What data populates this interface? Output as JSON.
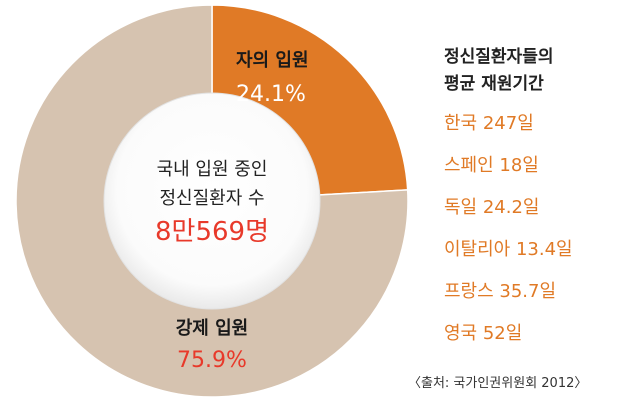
{
  "chart_data": {
    "type": "pie",
    "donut": true,
    "slices": [
      {
        "label": "자의 입원",
        "value": 24.1,
        "value_text": "24.1%",
        "color": "#e07a26"
      },
      {
        "label": "강제 입원",
        "value": 75.9,
        "value_text": "75.9%",
        "color": "#d6c3b0"
      }
    ],
    "center": {
      "line1": "국내 입원 중인",
      "line2": "정신질환자 수",
      "value": "8만569명"
    },
    "side_panel": {
      "title_line1": "정신질환자들의",
      "title_line2": "평균 재원기간",
      "items": [
        "한국 247일",
        "스페인 18일",
        "독일 24.2일",
        "이탈리아 13.4일",
        "프랑스 35.7일",
        "영국 52일"
      ]
    },
    "source": "〈출처: 국가인권위원회 2012〉",
    "colors": {
      "voluntary": "#e07a26",
      "forced": "#d6c3b0",
      "center_value": "#e8392a",
      "side_items": "#e07a26"
    }
  }
}
